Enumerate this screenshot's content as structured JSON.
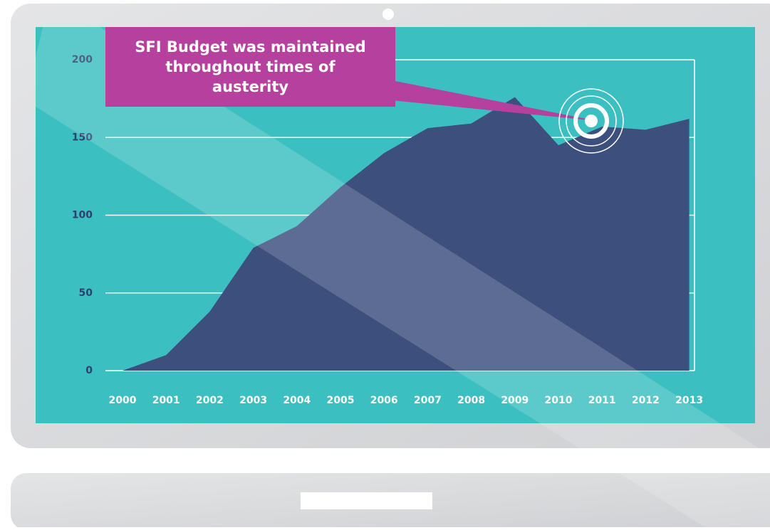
{
  "chart_data": {
    "type": "area",
    "annotation": "SFI Budget was maintained throughout times of austerity",
    "categories": [
      "2000",
      "2001",
      "2002",
      "2003",
      "2004",
      "2005",
      "2006",
      "2007",
      "2008",
      "2009",
      "2010",
      "2011",
      "2012",
      "2013"
    ],
    "values": [
      0,
      10,
      38,
      79,
      93,
      118,
      140,
      156,
      159,
      176,
      145,
      157,
      155,
      162
    ],
    "color": "#3d4f7c",
    "ylim": [
      0,
      200
    ],
    "yticks": [
      0,
      50,
      100,
      150,
      200
    ],
    "grid": true
  }
}
